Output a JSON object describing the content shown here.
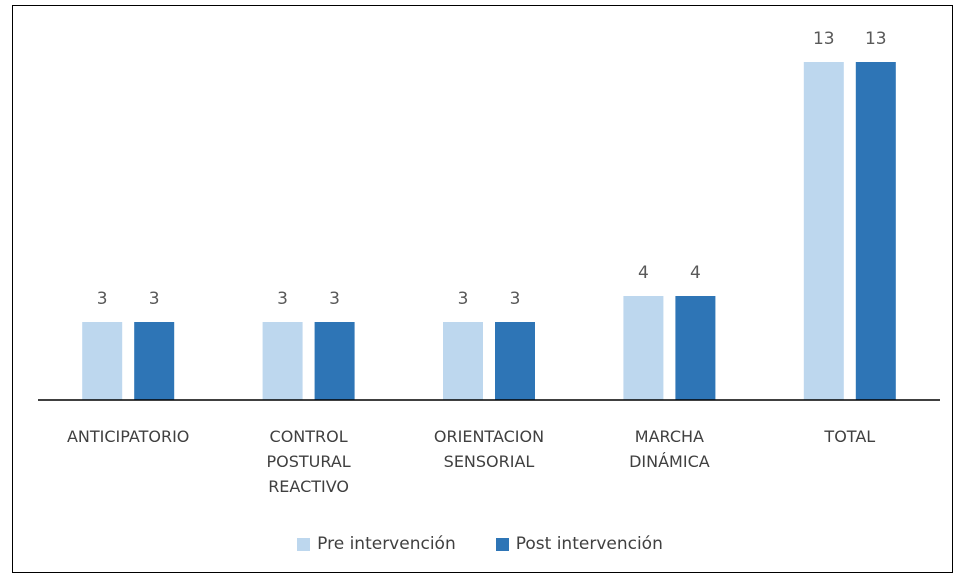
{
  "chart_data": {
    "type": "bar",
    "categories": [
      "ANTICIPATORIO",
      "CONTROL POSTURAL REACTIVO",
      "ORIENTACION SENSORIAL",
      "MARCHA DINÁMICA",
      "TOTAL"
    ],
    "series": [
      {
        "name": "Pre intervención",
        "color": "#bdd7ee",
        "values": [
          3,
          3,
          3,
          4,
          13
        ]
      },
      {
        "name": "Post intervención",
        "color": "#2e75b6",
        "values": [
          3,
          3,
          3,
          4,
          13
        ]
      }
    ],
    "ylim": [
      0,
      13
    ],
    "legend": "bottom"
  }
}
